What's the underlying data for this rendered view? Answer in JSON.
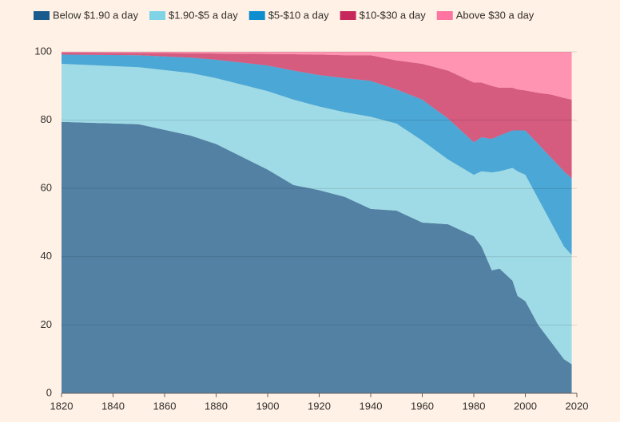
{
  "chart_data": {
    "type": "stacked_area",
    "x": [
      1820,
      1850,
      1870,
      1880,
      1900,
      1910,
      1920,
      1930,
      1940,
      1950,
      1960,
      1970,
      1980,
      1983,
      1987,
      1990,
      1995,
      1997,
      2000,
      2005,
      2010,
      2015,
      2018
    ],
    "series": [
      {
        "name": "Below $1.90 a day",
        "color": "#1a5b8e",
        "values": [
          79.5,
          78.8,
          75.5,
          73,
          65.5,
          61,
          59.5,
          57.5,
          54,
          53.5,
          50,
          49.5,
          46,
          43,
          36,
          36.5,
          33,
          28.5,
          27,
          20,
          15,
          10,
          8.5
        ]
      },
      {
        "name": "$1.90-$5 a day",
        "color": "#7fd3e6",
        "values": [
          17,
          16.7,
          18.3,
          19.3,
          23,
          25,
          24.5,
          24.8,
          27,
          25.5,
          24,
          19,
          18,
          22,
          28.7,
          28.5,
          33,
          36.5,
          37,
          37,
          35,
          33,
          32
        ]
      },
      {
        "name": "$5-$10 a day",
        "color": "#0f8ecf",
        "values": [
          2.7,
          3.5,
          4.5,
          5.4,
          7.5,
          8.5,
          9.2,
          10,
          10.5,
          10,
          12,
          12,
          9.5,
          10,
          9.8,
          10.5,
          11,
          12,
          13,
          16,
          19,
          22,
          22.5
        ]
      },
      {
        "name": "$10-$30 a day",
        "color": "#c7285c",
        "values": [
          0.6,
          0.7,
          1.3,
          1.8,
          3.4,
          4.8,
          6,
          6.7,
          7.5,
          8.5,
          10.5,
          14,
          17.5,
          16,
          15.5,
          14,
          12.5,
          12,
          11.7,
          15,
          18.5,
          21.5,
          23
        ]
      },
      {
        "name": "Above $30 a day",
        "color": "#ff74a0",
        "values": [
          0.2,
          0.3,
          0.4,
          0.5,
          0.6,
          0.7,
          0.8,
          1,
          1,
          2.5,
          3.5,
          5.5,
          9,
          9,
          10,
          10.5,
          10.5,
          11,
          11.3,
          12,
          12.5,
          13.5,
          14
        ]
      }
    ],
    "xlim": [
      1820,
      2020
    ],
    "xticks": [
      1820,
      1840,
      1860,
      1880,
      1900,
      1920,
      1940,
      1960,
      1980,
      2000,
      2020
    ],
    "ylim": [
      0,
      100
    ],
    "yticks": [
      0,
      20,
      40,
      60,
      80,
      100
    ],
    "grid": true
  }
}
